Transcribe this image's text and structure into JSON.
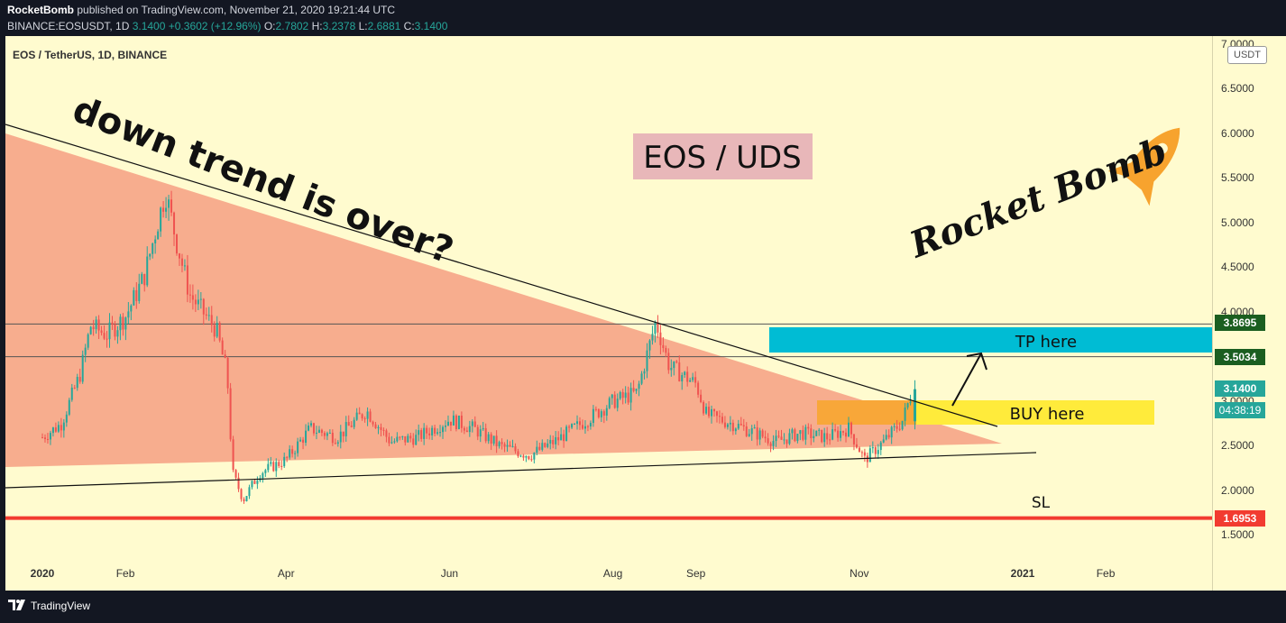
{
  "header": {
    "author": "RocketBomb",
    "published": " published on TradingView.com, November 21, 2020 19:21:44 UTC",
    "symbol_line_prefix": "BINANCE:EOSUSDT, 1D ",
    "price": "3.1400",
    "change": "+0.3602 (+12.96%)",
    "o_label": "O:",
    "o": "2.7802",
    "h_label": "H:",
    "h": "3.2378",
    "l_label": "L:",
    "l": "2.6881",
    "c_label": "C:",
    "c": "3.1400"
  },
  "symbol_title": "EOS / TetherUS, 1D, BINANCE",
  "currency": "USDT",
  "annotations": {
    "trend_question": "down trend is over?",
    "pair_label": "EOS / UDS",
    "tp_label": "TP here",
    "buy_label": "BUY here",
    "sl_label": "SL",
    "brand": "Rocket Bomb"
  },
  "price_tags": {
    "tp_level": "3.8695",
    "tp2_level": "3.5034",
    "last_price": "3.1400",
    "countdown": "04:38:19",
    "sl_level": "1.6953"
  },
  "footer": {
    "brand": "TradingView"
  },
  "colors": {
    "up": "#26a69a",
    "down": "#ef5350",
    "triangle": "#f7a98a",
    "tp_box": "#00bcd4",
    "buy_box": "#ffeb3b",
    "sl_line": "#f23b30",
    "pair_box": "#e8b7b9",
    "rocket": "#f7a32e"
  },
  "chart_data": {
    "type": "candlestick",
    "title": "EOS / TetherUS, 1D, BINANCE",
    "ylim": [
      1.25,
      7.05
    ],
    "y_ticks": [
      "7.0000",
      "6.5000",
      "6.0000",
      "5.5000",
      "5.0000",
      "4.5000",
      "4.0000",
      "3.5000",
      "3.0000",
      "2.5000",
      "2.0000",
      "1.5000"
    ],
    "x_ticks": [
      "2020",
      "Feb",
      "Apr",
      "Jun",
      "Aug",
      "Sep",
      "Nov",
      "2021",
      "Feb"
    ],
    "levels": {
      "tp": 3.8695,
      "tp2": 3.5034,
      "sl": 1.6953,
      "last": 3.14
    },
    "close_series": [
      {
        "date": "2020-01-01",
        "v": 2.6
      },
      {
        "date": "2020-01-08",
        "v": 2.75
      },
      {
        "date": "2020-01-15",
        "v": 3.3
      },
      {
        "date": "2020-01-19",
        "v": 3.85
      },
      {
        "date": "2020-01-25",
        "v": 3.75
      },
      {
        "date": "2020-02-01",
        "v": 3.95
      },
      {
        "date": "2020-02-08",
        "v": 4.4
      },
      {
        "date": "2020-02-13",
        "v": 5.0
      },
      {
        "date": "2020-02-16",
        "v": 5.35
      },
      {
        "date": "2020-02-20",
        "v": 4.8
      },
      {
        "date": "2020-02-25",
        "v": 4.2
      },
      {
        "date": "2020-03-01",
        "v": 4.0
      },
      {
        "date": "2020-03-06",
        "v": 3.8
      },
      {
        "date": "2020-03-10",
        "v": 3.3
      },
      {
        "date": "2020-03-12",
        "v": 2.2
      },
      {
        "date": "2020-03-16",
        "v": 1.9
      },
      {
        "date": "2020-03-22",
        "v": 2.2
      },
      {
        "date": "2020-04-01",
        "v": 2.35
      },
      {
        "date": "2020-04-10",
        "v": 2.7
      },
      {
        "date": "2020-04-20",
        "v": 2.6
      },
      {
        "date": "2020-05-01",
        "v": 2.9
      },
      {
        "date": "2020-05-10",
        "v": 2.55
      },
      {
        "date": "2020-05-20",
        "v": 2.6
      },
      {
        "date": "2020-06-01",
        "v": 2.8
      },
      {
        "date": "2020-06-10",
        "v": 2.7
      },
      {
        "date": "2020-06-20",
        "v": 2.5
      },
      {
        "date": "2020-07-01",
        "v": 2.4
      },
      {
        "date": "2020-07-10",
        "v": 2.55
      },
      {
        "date": "2020-07-20",
        "v": 2.75
      },
      {
        "date": "2020-08-01",
        "v": 3.0
      },
      {
        "date": "2020-08-10",
        "v": 3.1
      },
      {
        "date": "2020-08-17",
        "v": 3.9
      },
      {
        "date": "2020-08-22",
        "v": 3.4
      },
      {
        "date": "2020-09-01",
        "v": 3.2
      },
      {
        "date": "2020-09-05",
        "v": 2.85
      },
      {
        "date": "2020-09-15",
        "v": 2.75
      },
      {
        "date": "2020-10-01",
        "v": 2.55
      },
      {
        "date": "2020-10-10",
        "v": 2.65
      },
      {
        "date": "2020-10-20",
        "v": 2.6
      },
      {
        "date": "2020-10-28",
        "v": 2.7
      },
      {
        "date": "2020-11-03",
        "v": 2.35
      },
      {
        "date": "2020-11-10",
        "v": 2.55
      },
      {
        "date": "2020-11-17",
        "v": 2.78
      },
      {
        "date": "2020-11-21",
        "v": 3.14
      }
    ]
  }
}
